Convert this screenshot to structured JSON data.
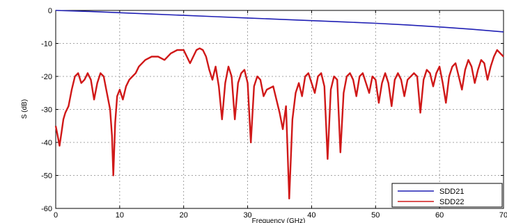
{
  "chart_data": {
    "type": "line",
    "xlabel": "Frequency (GHz)",
    "ylabel": "S (dB)",
    "xlim": [
      0,
      70
    ],
    "ylim": [
      -60,
      0
    ],
    "x_ticks": [
      "0",
      "10",
      "20",
      "30",
      "40",
      "50",
      "60",
      "70"
    ],
    "y_ticks": [
      "0",
      "-10",
      "-20",
      "-30",
      "-40",
      "-50",
      "-60"
    ],
    "grid": true,
    "legend_position": "bottom-right",
    "series": [
      {
        "name": "SDD21",
        "color": "#1f1fb4",
        "points": [
          [
            0,
            0
          ],
          [
            5,
            -0.3
          ],
          [
            10,
            -0.7
          ],
          [
            15,
            -1.1
          ],
          [
            20,
            -1.5
          ],
          [
            25,
            -1.9
          ],
          [
            30,
            -2.3
          ],
          [
            35,
            -2.7
          ],
          [
            40,
            -3.1
          ],
          [
            45,
            -3.5
          ],
          [
            50,
            -3.9
          ],
          [
            55,
            -4.4
          ],
          [
            60,
            -5.0
          ],
          [
            65,
            -5.7
          ],
          [
            70,
            -6.5
          ]
        ]
      },
      {
        "name": "SDD22",
        "color": "#d01818",
        "points": [
          [
            0,
            -35
          ],
          [
            0.3,
            -38
          ],
          [
            0.6,
            -41
          ],
          [
            0.9,
            -37
          ],
          [
            1.2,
            -33
          ],
          [
            1.5,
            -31
          ],
          [
            2,
            -29
          ],
          [
            2.5,
            -24
          ],
          [
            3,
            -20
          ],
          [
            3.5,
            -19
          ],
          [
            4,
            -22
          ],
          [
            4.5,
            -21
          ],
          [
            5,
            -19
          ],
          [
            5.5,
            -21
          ],
          [
            6,
            -27
          ],
          [
            6.5,
            -22
          ],
          [
            7,
            -19
          ],
          [
            7.5,
            -20
          ],
          [
            8,
            -25
          ],
          [
            8.5,
            -30
          ],
          [
            8.8,
            -38
          ],
          [
            9,
            -50
          ],
          [
            9.3,
            -34
          ],
          [
            9.6,
            -26
          ],
          [
            10,
            -24
          ],
          [
            10.5,
            -27
          ],
          [
            11,
            -23
          ],
          [
            11.5,
            -21
          ],
          [
            12,
            -20
          ],
          [
            12.5,
            -19
          ],
          [
            13,
            -17
          ],
          [
            14,
            -15
          ],
          [
            15,
            -14
          ],
          [
            16,
            -14
          ],
          [
            17,
            -15
          ],
          [
            18,
            -13
          ],
          [
            19,
            -12
          ],
          [
            20,
            -12
          ],
          [
            20.5,
            -14
          ],
          [
            21,
            -16
          ],
          [
            21.5,
            -14
          ],
          [
            22,
            -12
          ],
          [
            22.5,
            -11.5
          ],
          [
            23,
            -12
          ],
          [
            23.5,
            -14
          ],
          [
            24,
            -18
          ],
          [
            24.5,
            -21
          ],
          [
            25,
            -17
          ],
          [
            25.5,
            -23
          ],
          [
            26,
            -33
          ],
          [
            26.5,
            -22
          ],
          [
            27,
            -17
          ],
          [
            27.5,
            -20
          ],
          [
            28,
            -33
          ],
          [
            28.5,
            -22
          ],
          [
            29,
            -19
          ],
          [
            29.5,
            -18
          ],
          [
            30,
            -22
          ],
          [
            30.5,
            -40
          ],
          [
            31,
            -23
          ],
          [
            31.5,
            -20
          ],
          [
            32,
            -21
          ],
          [
            32.5,
            -26
          ],
          [
            33,
            -24
          ],
          [
            34,
            -23
          ],
          [
            34.5,
            -27
          ],
          [
            35,
            -31
          ],
          [
            35.5,
            -36
          ],
          [
            36,
            -29
          ],
          [
            36.5,
            -57
          ],
          [
            37,
            -33
          ],
          [
            37.5,
            -25
          ],
          [
            38,
            -22
          ],
          [
            38.5,
            -26
          ],
          [
            39,
            -20
          ],
          [
            39.5,
            -19
          ],
          [
            40,
            -22
          ],
          [
            40.5,
            -25
          ],
          [
            41,
            -20
          ],
          [
            41.5,
            -19
          ],
          [
            42,
            -23
          ],
          [
            42.5,
            -45
          ],
          [
            43,
            -24
          ],
          [
            43.5,
            -20
          ],
          [
            44,
            -21
          ],
          [
            44.5,
            -43
          ],
          [
            45,
            -25
          ],
          [
            45.5,
            -20
          ],
          [
            46,
            -19
          ],
          [
            46.5,
            -21
          ],
          [
            47,
            -26
          ],
          [
            47.5,
            -20
          ],
          [
            48,
            -19
          ],
          [
            48.5,
            -22
          ],
          [
            49,
            -25
          ],
          [
            49.5,
            -20
          ],
          [
            50,
            -21
          ],
          [
            50.5,
            -28
          ],
          [
            51,
            -22
          ],
          [
            51.5,
            -19
          ],
          [
            52,
            -22
          ],
          [
            52.5,
            -29
          ],
          [
            53,
            -21
          ],
          [
            53.5,
            -19
          ],
          [
            54,
            -21
          ],
          [
            54.5,
            -26
          ],
          [
            55,
            -21
          ],
          [
            56,
            -19
          ],
          [
            56.5,
            -20
          ],
          [
            57,
            -31
          ],
          [
            57.5,
            -21
          ],
          [
            58,
            -18
          ],
          [
            58.5,
            -19
          ],
          [
            59,
            -23
          ],
          [
            59.5,
            -19
          ],
          [
            60,
            -17
          ],
          [
            60.5,
            -22
          ],
          [
            61,
            -28
          ],
          [
            61.5,
            -20
          ],
          [
            62,
            -17
          ],
          [
            62.5,
            -16
          ],
          [
            63,
            -20
          ],
          [
            63.5,
            -24
          ],
          [
            64,
            -18
          ],
          [
            64.5,
            -15
          ],
          [
            65,
            -17
          ],
          [
            65.5,
            -22
          ],
          [
            66,
            -18
          ],
          [
            66.5,
            -15
          ],
          [
            67,
            -16
          ],
          [
            67.5,
            -21
          ],
          [
            68,
            -17
          ],
          [
            68.5,
            -14
          ],
          [
            69,
            -12
          ],
          [
            69.5,
            -13
          ],
          [
            70,
            -14
          ]
        ]
      }
    ]
  }
}
